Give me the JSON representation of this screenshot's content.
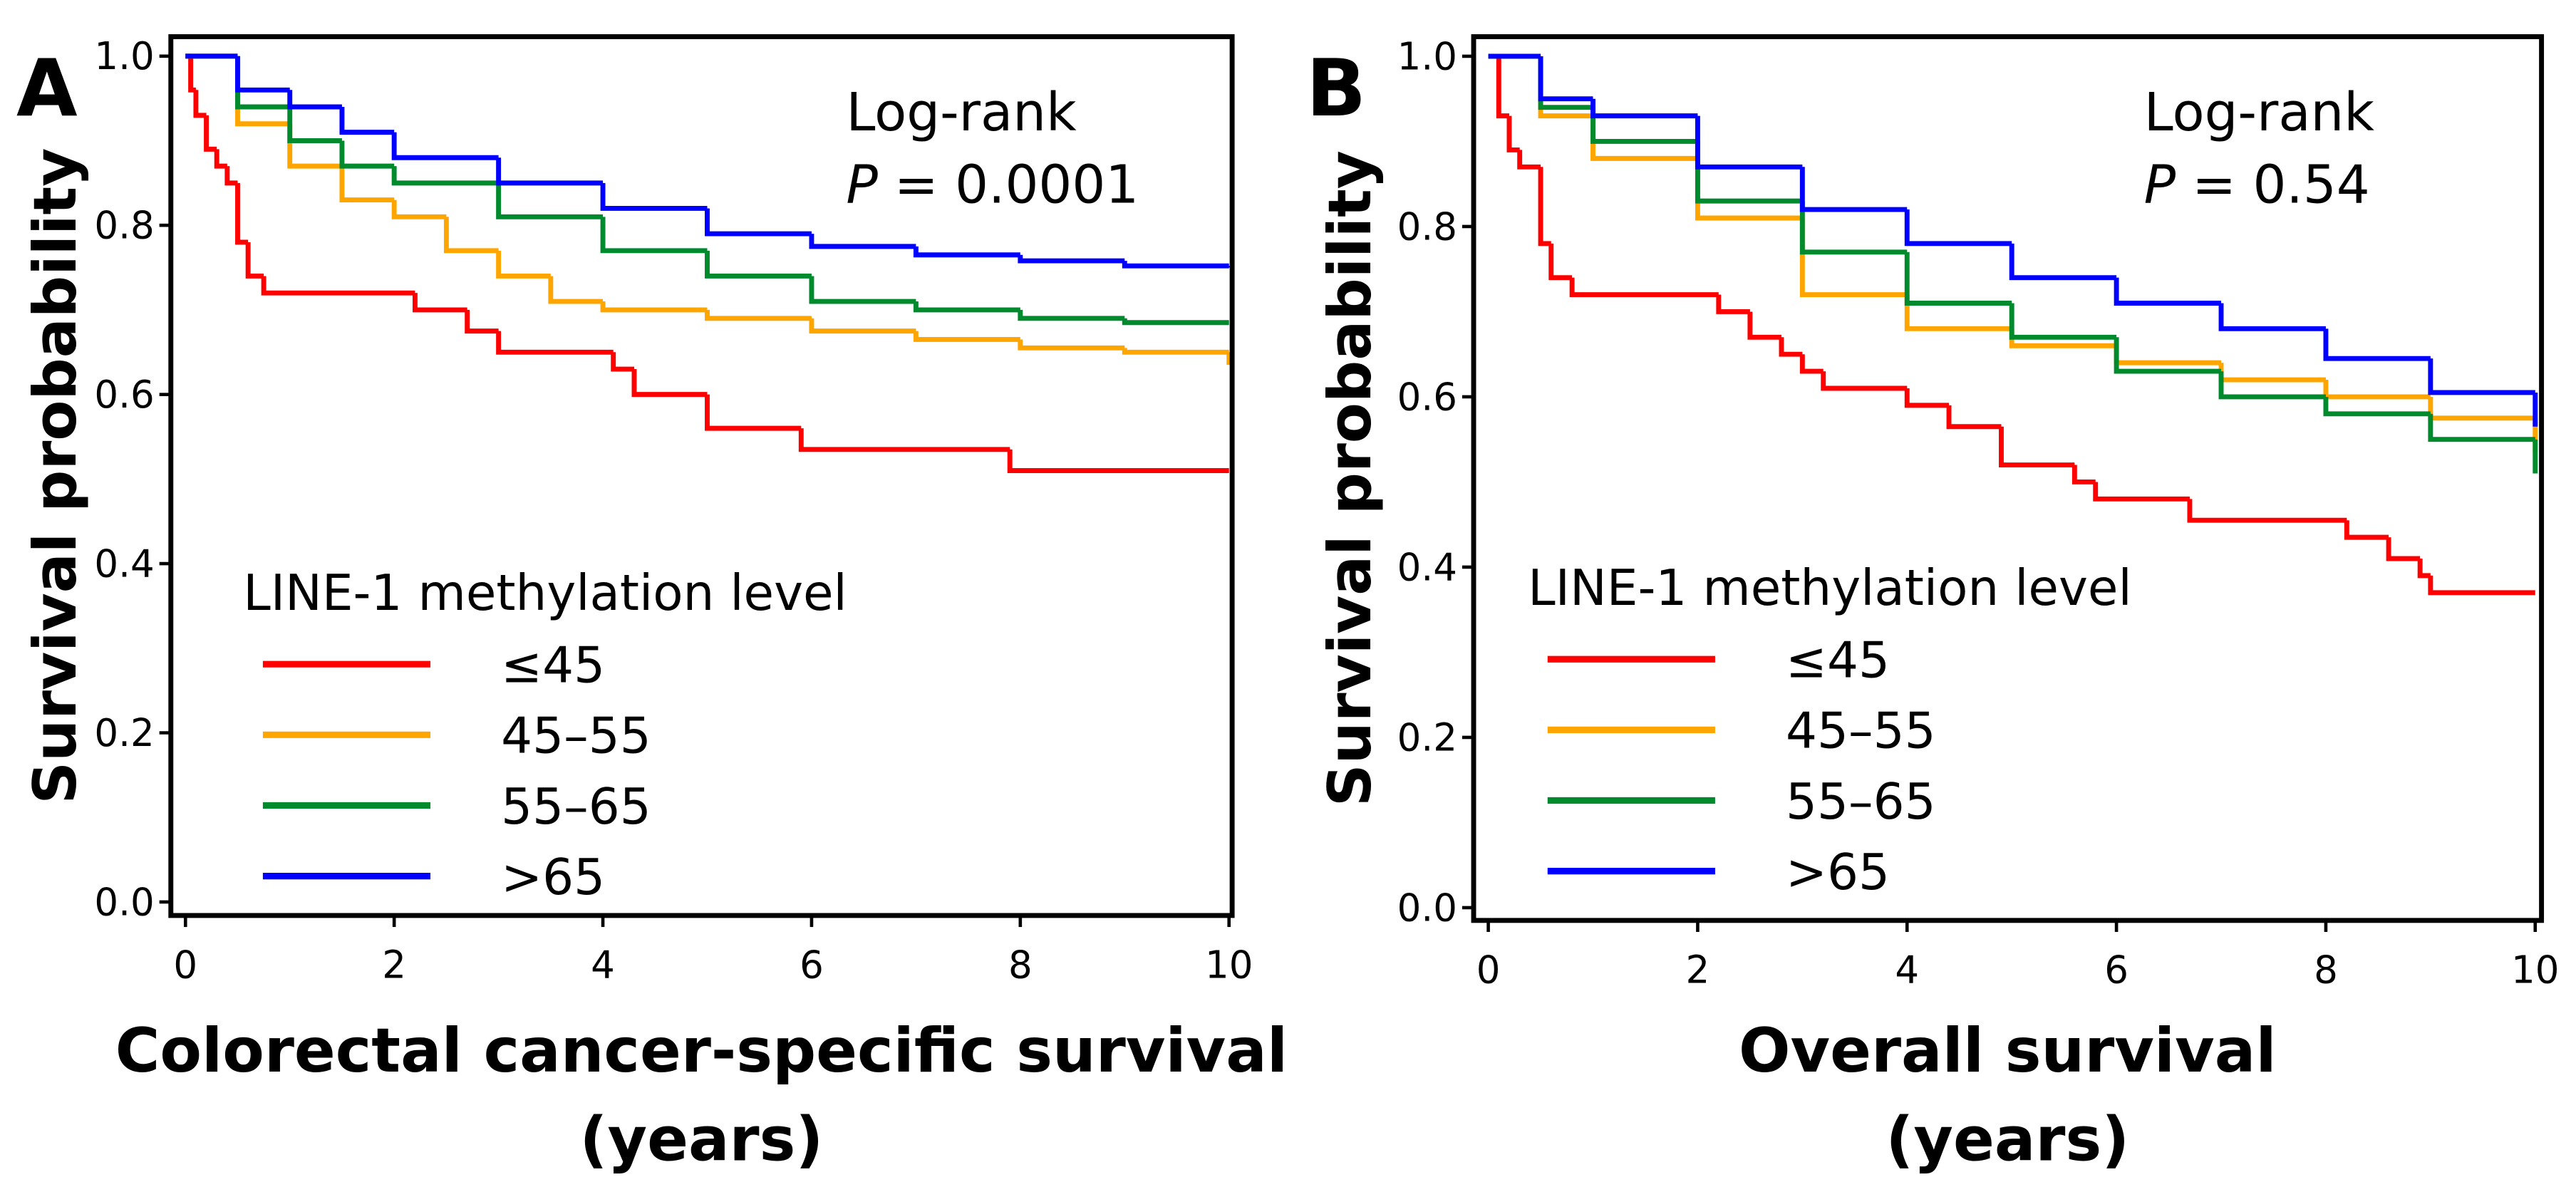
{
  "chart_data": [
    {
      "type": "line",
      "step": true,
      "panel_label": "A",
      "ylabel": "Survival probability",
      "xlabel": [
        "Colorectal cancer-specific survival",
        "(years)"
      ],
      "stat_test": "Log-rank",
      "p_symbol": "P",
      "p_value": "= 0.0001",
      "legend_title": "LINE-1 methylation level",
      "xlim": [
        -0.14,
        10.03
      ],
      "ylim": [
        -0.016,
        1.023
      ],
      "xticks": [
        0,
        2,
        4,
        6,
        8,
        10
      ],
      "yticks": [
        {
          "value": 0,
          "label": "0.0"
        },
        {
          "value": 0.2,
          "label": "0.2"
        },
        {
          "value": 0.4,
          "label": "0.4"
        },
        {
          "value": 0.6,
          "label": "0.6"
        },
        {
          "value": 0.8,
          "label": "0.8"
        },
        {
          "value": 1,
          "label": "1.0"
        }
      ],
      "series": [
        {
          "name": "≤45",
          "color": "#ff0000",
          "x": [
            0,
            0.05,
            0.1,
            0.2,
            0.3,
            0.4,
            0.5,
            0.6,
            0.75,
            2.2,
            2.7,
            3.0,
            4.1,
            4.3,
            5.0,
            5.9,
            7.9,
            10
          ],
          "values": [
            1.0,
            0.96,
            0.93,
            0.89,
            0.87,
            0.85,
            0.78,
            0.74,
            0.72,
            0.7,
            0.675,
            0.65,
            0.63,
            0.6,
            0.56,
            0.535,
            0.51,
            0.51
          ]
        },
        {
          "name": "45–55",
          "color": "#ffa500",
          "x": [
            0,
            0.5,
            1,
            1.5,
            2,
            2.5,
            3,
            3.5,
            4,
            5,
            6,
            7,
            8,
            9,
            10
          ],
          "values": [
            1.0,
            0.92,
            0.87,
            0.83,
            0.81,
            0.77,
            0.74,
            0.71,
            0.7,
            0.69,
            0.675,
            0.665,
            0.655,
            0.65,
            0.635
          ]
        },
        {
          "name": "55–65",
          "color": "#008a2e",
          "x": [
            0,
            0.5,
            1,
            1.5,
            2,
            3,
            4,
            5,
            6,
            7,
            8,
            9,
            10
          ],
          "values": [
            1.0,
            0.94,
            0.9,
            0.87,
            0.85,
            0.81,
            0.77,
            0.74,
            0.71,
            0.7,
            0.69,
            0.685,
            0.685
          ]
        },
        {
          "name": ">65",
          "color": "#0000ff",
          "x": [
            0,
            0.5,
            1,
            1.5,
            2,
            3,
            4,
            5,
            6,
            7,
            8,
            9,
            10
          ],
          "values": [
            1.0,
            0.96,
            0.94,
            0.91,
            0.88,
            0.85,
            0.82,
            0.79,
            0.775,
            0.765,
            0.758,
            0.752,
            0.75
          ]
        }
      ]
    },
    {
      "type": "line",
      "step": true,
      "panel_label": "B",
      "ylabel": "Survival probability",
      "xlabel": [
        "Overall survival",
        "(years)"
      ],
      "stat_test": "Log-rank",
      "p_symbol": "P",
      "p_value": "= 0.54",
      "legend_title": "LINE-1 methylation level",
      "xlim": [
        -0.14,
        10.06
      ],
      "ylim": [
        -0.015,
        1.023
      ],
      "xticks": [
        0,
        2,
        4,
        6,
        8,
        10
      ],
      "yticks": [
        {
          "value": 0,
          "label": "0.0"
        },
        {
          "value": 0.2,
          "label": "0.2"
        },
        {
          "value": 0.4,
          "label": "0.4"
        },
        {
          "value": 0.6,
          "label": "0.6"
        },
        {
          "value": 0.8,
          "label": "0.8"
        },
        {
          "value": 1,
          "label": "1.0"
        }
      ],
      "series": [
        {
          "name": "≤45",
          "color": "#ff0000",
          "x": [
            0,
            0.1,
            0.2,
            0.3,
            0.5,
            0.6,
            0.8,
            2.2,
            2.5,
            2.8,
            3.0,
            3.2,
            4.0,
            4.4,
            4.9,
            5.6,
            5.8,
            6.7,
            8.2,
            8.6,
            8.9,
            9.0,
            10
          ],
          "values": [
            1.0,
            0.93,
            0.89,
            0.87,
            0.78,
            0.74,
            0.72,
            0.7,
            0.67,
            0.65,
            0.63,
            0.61,
            0.59,
            0.565,
            0.52,
            0.5,
            0.48,
            0.455,
            0.435,
            0.41,
            0.39,
            0.37,
            0.37
          ]
        },
        {
          "name": "45–55",
          "color": "#ffa500",
          "x": [
            0,
            0.5,
            1,
            2,
            3,
            4,
            5,
            6,
            7,
            8,
            9,
            10
          ],
          "values": [
            1.0,
            0.93,
            0.88,
            0.81,
            0.72,
            0.68,
            0.66,
            0.64,
            0.62,
            0.6,
            0.575,
            0.535
          ]
        },
        {
          "name": "55–65",
          "color": "#008a2e",
          "x": [
            0,
            0.5,
            1,
            2,
            3,
            4,
            5,
            6,
            7,
            8,
            9,
            10
          ],
          "values": [
            1.0,
            0.94,
            0.9,
            0.83,
            0.77,
            0.71,
            0.67,
            0.63,
            0.6,
            0.58,
            0.55,
            0.51
          ]
        },
        {
          "name": ">65",
          "color": "#0000ff",
          "x": [
            0,
            0.5,
            1,
            2,
            3,
            4,
            5,
            6,
            7,
            8,
            9,
            10
          ],
          "values": [
            1.0,
            0.95,
            0.93,
            0.87,
            0.82,
            0.78,
            0.74,
            0.71,
            0.68,
            0.645,
            0.605,
            0.565
          ]
        }
      ]
    }
  ]
}
